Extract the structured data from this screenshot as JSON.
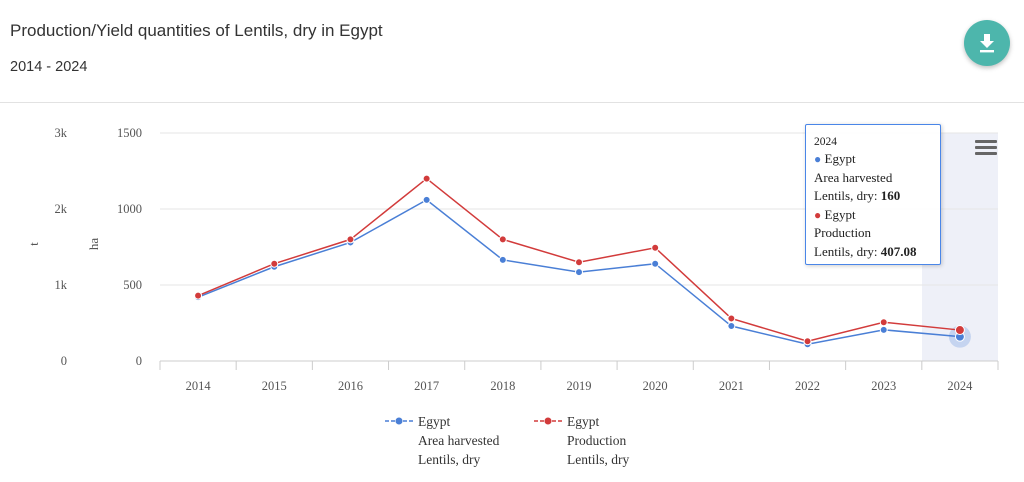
{
  "header": {
    "title": "Production/Yield quantities of Lentils, dry in Egypt",
    "subtitle": "2014 - 2024"
  },
  "icons": {
    "download": "download-icon",
    "menu": "hamburger-menu-icon"
  },
  "colors": {
    "area_harvested": "#4a7fd6",
    "production": "#d23b3b",
    "accent": "#4db6ac",
    "highlight": "#eef0f8"
  },
  "tooltip": {
    "year": "2024",
    "s1_country": "Egypt",
    "s1_line1": "Area harvested",
    "s1_label": "Lentils, dry: ",
    "s1_value": "160",
    "s2_country": "Egypt",
    "s2_line1": "Production",
    "s2_label": "Lentils, dry: ",
    "s2_value": "407.08"
  },
  "legend": [
    {
      "line1": "Egypt",
      "line2": "Area harvested",
      "line3": "Lentils, dry"
    },
    {
      "line1": "Egypt",
      "line2": "Production",
      "line3": "Lentils, dry"
    }
  ],
  "chart_data": {
    "type": "line",
    "categories": [
      "2014",
      "2015",
      "2016",
      "2017",
      "2018",
      "2019",
      "2020",
      "2021",
      "2022",
      "2023",
      "2024"
    ],
    "y_axis_left": {
      "label": "t",
      "ticks": [
        "0",
        "1k",
        "2k",
        "3k"
      ],
      "range": [
        0,
        3000
      ]
    },
    "y_axis_right": {
      "label": "ha",
      "ticks": [
        "0",
        "500",
        "1000",
        "1500"
      ],
      "range": [
        0,
        1500
      ]
    },
    "series": [
      {
        "name": "Egypt Area harvested Lentils, dry",
        "axis": "ha",
        "values": [
          420,
          620,
          780,
          1060,
          665,
          585,
          640,
          230,
          110,
          205,
          160
        ]
      },
      {
        "name": "Egypt Production Lentils, dry",
        "axis": "t",
        "values": [
          860,
          1280,
          1600,
          2400,
          1600,
          1300,
          1490,
          560,
          260,
          510,
          407.08
        ]
      }
    ],
    "highlighted_category": "2024",
    "grid": true
  }
}
